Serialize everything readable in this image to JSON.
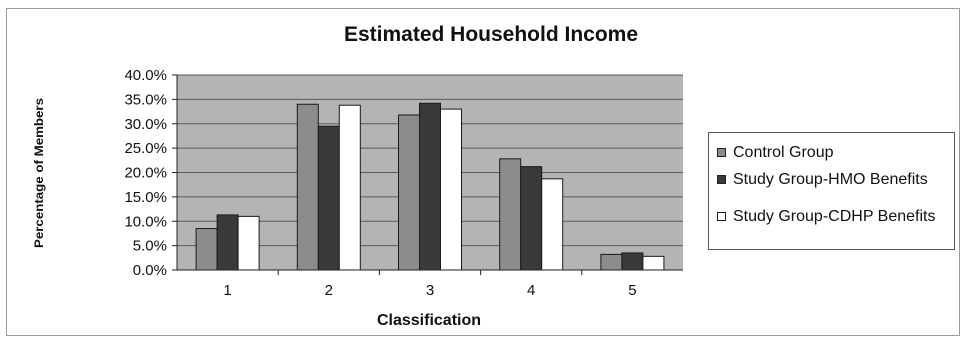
{
  "chart_data": {
    "type": "bar",
    "title": "Estimated Household Income",
    "xlabel": "Classification",
    "ylabel": "Percentage of Members",
    "categories": [
      "1",
      "2",
      "3",
      "4",
      "5"
    ],
    "ylim": [
      0,
      0.4
    ],
    "yticks": [
      "0.0%",
      "5.0%",
      "10.0%",
      "15.0%",
      "20.0%",
      "25.0%",
      "30.0%",
      "35.0%",
      "40.0%"
    ],
    "grid": true,
    "legend_position": "right",
    "series": [
      {
        "name": "Control Group",
        "values": [
          0.085,
          0.34,
          0.318,
          0.228,
          0.032
        ],
        "color": "#8c8c8c"
      },
      {
        "name": "Study Group-HMO Benefits",
        "values": [
          0.113,
          0.295,
          0.342,
          0.212,
          0.035
        ],
        "color": "#3a3a3a"
      },
      {
        "name": "Study Group-CDHP Benefits",
        "values": [
          0.11,
          0.338,
          0.33,
          0.187,
          0.028
        ],
        "color": "#ffffff"
      }
    ],
    "plot_background": "#b4b4b4"
  }
}
